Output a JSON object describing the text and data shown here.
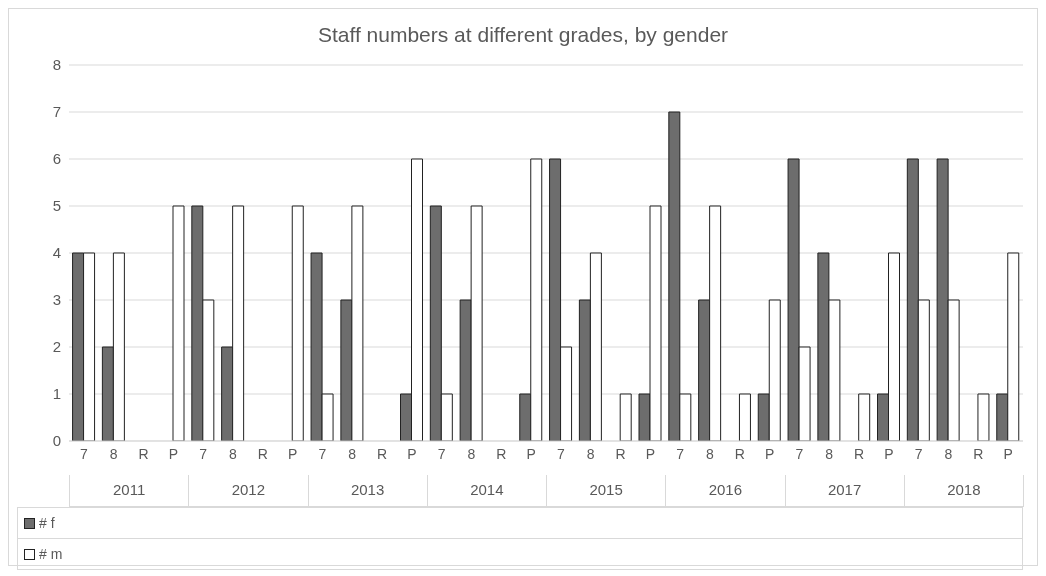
{
  "chart_data": {
    "type": "bar",
    "title": "Staff numbers at different grades, by gender",
    "categories": [
      "7",
      "8",
      "R",
      "P",
      "7",
      "8",
      "R",
      "P",
      "7",
      "8",
      "R",
      "P",
      "7",
      "8",
      "R",
      "P",
      "7",
      "8",
      "R",
      "P",
      "7",
      "8",
      "R",
      "P",
      "7",
      "8",
      "R",
      "P",
      "7",
      "8",
      "R",
      "P"
    ],
    "annotations": [
      "2011",
      "2012",
      "2013",
      "2014",
      "2015",
      "2016",
      "2017",
      "2018"
    ],
    "series": [
      {
        "name": "# f",
        "color": "#6d6d6d",
        "values": [
          4,
          2,
          null,
          null,
          5,
          2,
          null,
          null,
          4,
          3,
          null,
          1,
          5,
          3,
          null,
          1,
          6,
          3,
          null,
          1,
          7,
          3,
          null,
          1,
          6,
          4,
          null,
          1,
          6,
          6,
          null,
          1
        ]
      },
      {
        "name": "# m",
        "color": "#ffffff",
        "values": [
          4,
          4,
          null,
          5,
          3,
          5,
          null,
          5,
          1,
          5,
          null,
          6,
          1,
          5,
          null,
          6,
          2,
          4,
          1,
          5,
          1,
          5,
          1,
          3,
          2,
          3,
          1,
          4,
          3,
          3,
          1,
          4
        ]
      }
    ],
    "ylim": [
      0,
      8
    ],
    "yticks": [
      0,
      1,
      2,
      3,
      4,
      5,
      6,
      7,
      8
    ],
    "grid": "y",
    "legend": "bottom"
  }
}
